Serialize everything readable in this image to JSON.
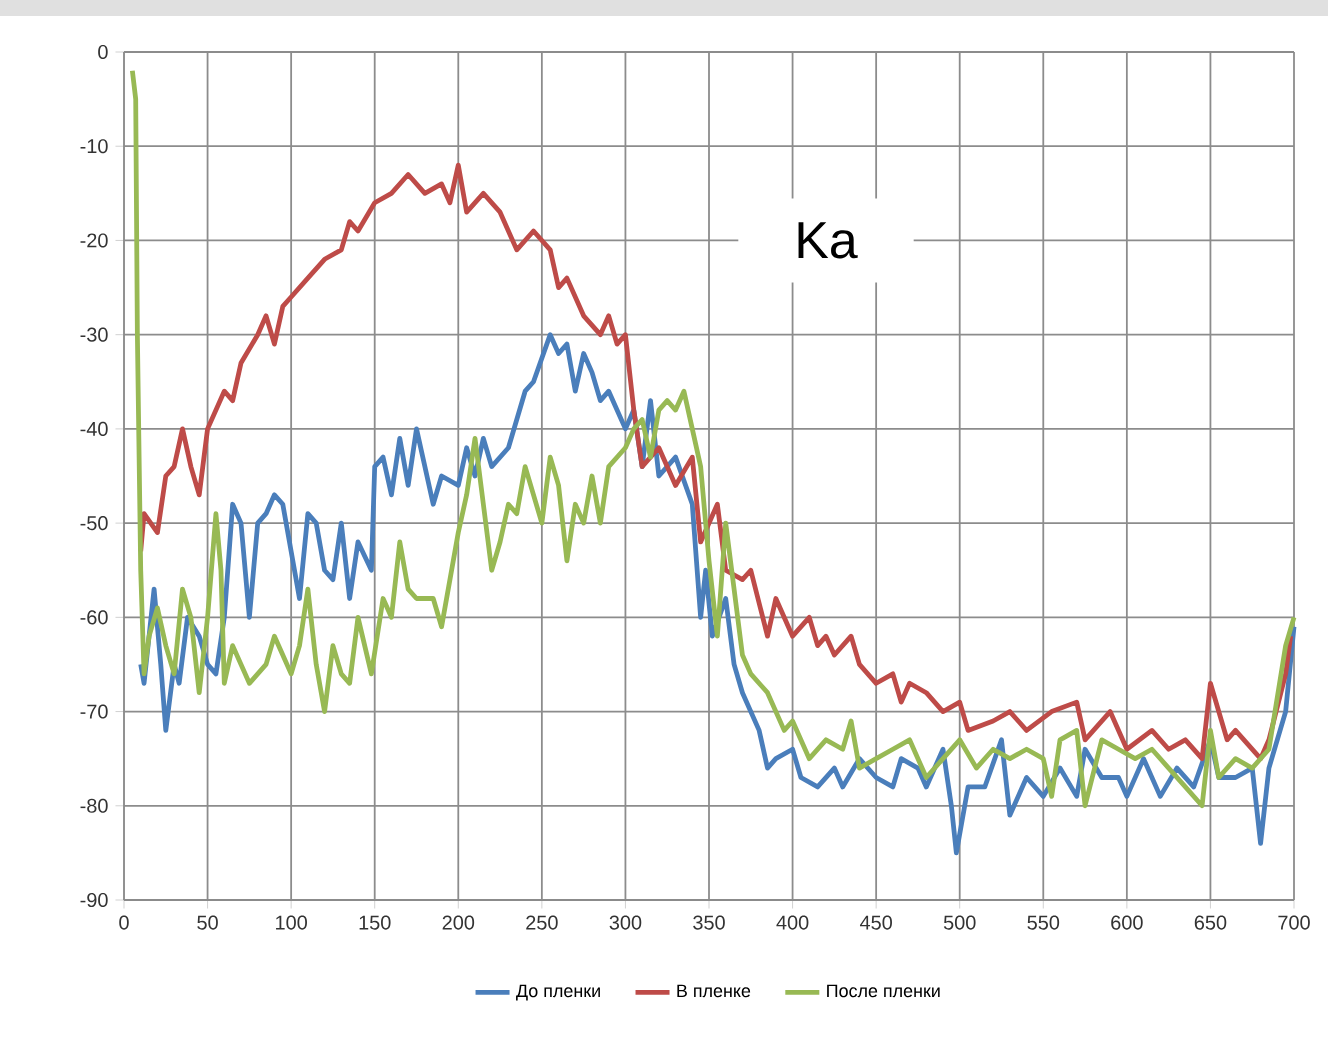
{
  "chart_data": {
    "type": "line",
    "annotations": [
      "Ka"
    ],
    "xlim": [
      0,
      700
    ],
    "ylim": [
      -90,
      0
    ],
    "xticks": [
      0,
      50,
      100,
      150,
      200,
      250,
      300,
      350,
      400,
      450,
      500,
      550,
      600,
      650,
      700
    ],
    "yticks": [
      -90,
      -80,
      -70,
      -60,
      -50,
      -40,
      -30,
      -20,
      -10,
      0
    ],
    "grid": true,
    "legend": "bottom",
    "marker": "none",
    "line_style": "solid",
    "series": [
      {
        "name": "До пленки",
        "color": "#4a7ebb",
        "x": [
          10,
          12,
          18,
          22,
          25,
          30,
          33,
          38,
          45,
          50,
          55,
          60,
          65,
          70,
          75,
          80,
          85,
          90,
          95,
          100,
          105,
          110,
          115,
          120,
          125,
          130,
          135,
          140,
          148,
          150,
          155,
          160,
          165,
          170,
          175,
          180,
          185,
          190,
          200,
          205,
          210,
          215,
          220,
          230,
          240,
          245,
          255,
          260,
          265,
          270,
          275,
          280,
          285,
          290,
          300,
          305,
          310,
          315,
          320,
          330,
          340,
          345,
          348,
          352,
          360,
          365,
          370,
          380,
          385,
          390,
          400,
          405,
          415,
          425,
          430,
          440,
          450,
          460,
          465,
          475,
          480,
          490,
          495,
          498,
          505,
          515,
          525,
          530,
          540,
          550,
          560,
          570,
          575,
          585,
          595,
          600,
          610,
          620,
          630,
          640,
          650,
          655,
          665,
          675,
          680,
          685,
          695,
          700
        ],
        "values": [
          -65,
          -67,
          -57,
          -65,
          -72,
          -65,
          -67,
          -60,
          -62,
          -65,
          -66,
          -60,
          -48,
          -50,
          -60,
          -50,
          -49,
          -47,
          -48,
          -53,
          -58,
          -49,
          -50,
          -55,
          -56,
          -50,
          -58,
          -52,
          -55,
          -44,
          -43,
          -47,
          -41,
          -46,
          -40,
          -44,
          -48,
          -45,
          -46,
          -42,
          -45,
          -41,
          -44,
          -42,
          -36,
          -35,
          -30,
          -32,
          -31,
          -36,
          -32,
          -34,
          -37,
          -36,
          -40,
          -38,
          -44,
          -37,
          -45,
          -43,
          -48,
          -60,
          -55,
          -62,
          -58,
          -65,
          -68,
          -72,
          -76,
          -75,
          -74,
          -77,
          -78,
          -76,
          -78,
          -75,
          -77,
          -78,
          -75,
          -76,
          -78,
          -74,
          -80,
          -85,
          -78,
          -78,
          -73,
          -81,
          -77,
          -79,
          -76,
          -79,
          -74,
          -77,
          -77,
          -79,
          -75,
          -79,
          -76,
          -78,
          -73,
          -77,
          -77,
          -76,
          -84,
          -76,
          -70,
          -61
        ]
      },
      {
        "name": "В пленке",
        "color": "#be4b48",
        "x": [
          10,
          12,
          20,
          25,
          30,
          35,
          40,
          45,
          50,
          55,
          60,
          65,
          70,
          80,
          85,
          90,
          95,
          100,
          110,
          120,
          130,
          135,
          140,
          150,
          160,
          170,
          180,
          190,
          195,
          200,
          205,
          215,
          225,
          235,
          245,
          255,
          260,
          265,
          275,
          285,
          290,
          295,
          300,
          305,
          310,
          320,
          330,
          340,
          345,
          355,
          360,
          370,
          375,
          385,
          390,
          400,
          410,
          415,
          420,
          425,
          435,
          440,
          450,
          460,
          465,
          470,
          480,
          490,
          500,
          505,
          520,
          530,
          540,
          555,
          570,
          575,
          590,
          600,
          615,
          625,
          635,
          645,
          650,
          660,
          665,
          680,
          685,
          695,
          698
        ],
        "values": [
          -53,
          -49,
          -51,
          -45,
          -44,
          -40,
          -44,
          -47,
          -40,
          -38,
          -36,
          -37,
          -33,
          -30,
          -28,
          -31,
          -27,
          -26,
          -24,
          -22,
          -21,
          -18,
          -19,
          -16,
          -15,
          -13,
          -15,
          -14,
          -16,
          -12,
          -17,
          -15,
          -17,
          -21,
          -19,
          -21,
          -25,
          -24,
          -28,
          -30,
          -28,
          -31,
          -30,
          -38,
          -44,
          -42,
          -46,
          -43,
          -52,
          -48,
          -55,
          -56,
          -55,
          -62,
          -58,
          -62,
          -60,
          -63,
          -62,
          -64,
          -62,
          -65,
          -67,
          -66,
          -69,
          -67,
          -68,
          -70,
          -69,
          -72,
          -71,
          -70,
          -72,
          -70,
          -69,
          -73,
          -70,
          -74,
          -72,
          -74,
          -73,
          -75,
          -67,
          -73,
          -72,
          -75,
          -73,
          -66,
          -62
        ]
      },
      {
        "name": "После пленки",
        "color": "#98b954",
        "x": [
          5,
          7,
          8,
          10,
          12,
          15,
          20,
          25,
          30,
          35,
          40,
          45,
          50,
          55,
          58,
          60,
          65,
          70,
          75,
          80,
          85,
          90,
          95,
          100,
          105,
          110,
          115,
          120,
          125,
          130,
          135,
          140,
          148,
          155,
          160,
          165,
          170,
          175,
          185,
          190,
          200,
          205,
          210,
          215,
          220,
          225,
          230,
          235,
          240,
          250,
          255,
          260,
          265,
          270,
          275,
          280,
          285,
          290,
          300,
          305,
          310,
          315,
          320,
          325,
          330,
          335,
          340,
          345,
          350,
          355,
          360,
          365,
          370,
          375,
          385,
          395,
          400,
          410,
          420,
          430,
          435,
          440,
          450,
          460,
          470,
          480,
          490,
          500,
          510,
          520,
          530,
          540,
          550,
          555,
          560,
          570,
          575,
          585,
          595,
          605,
          615,
          625,
          635,
          645,
          650,
          655,
          665,
          675,
          685,
          695,
          700
        ],
        "values": [
          -2,
          -5,
          -30,
          -55,
          -66,
          -62,
          -59,
          -63,
          -66,
          -57,
          -60,
          -68,
          -60,
          -49,
          -55,
          -67,
          -63,
          -65,
          -67,
          -66,
          -65,
          -62,
          -64,
          -66,
          -63,
          -57,
          -65,
          -70,
          -63,
          -66,
          -67,
          -60,
          -66,
          -58,
          -60,
          -52,
          -57,
          -58,
          -58,
          -61,
          -51,
          -47,
          -41,
          -48,
          -55,
          -52,
          -48,
          -49,
          -44,
          -50,
          -43,
          -46,
          -54,
          -48,
          -50,
          -45,
          -50,
          -44,
          -42,
          -40,
          -39,
          -43,
          -38,
          -37,
          -38,
          -36,
          -40,
          -44,
          -54,
          -62,
          -50,
          -57,
          -64,
          -66,
          -68,
          -72,
          -71,
          -75,
          -73,
          -74,
          -71,
          -76,
          -75,
          -74,
          -73,
          -77,
          -75,
          -73,
          -76,
          -74,
          -75,
          -74,
          -75,
          -79,
          -73,
          -72,
          -80,
          -73,
          -74,
          -75,
          -74,
          -76,
          -78,
          -80,
          -72,
          -77,
          -75,
          -76,
          -74,
          -63,
          -60
        ]
      }
    ]
  }
}
